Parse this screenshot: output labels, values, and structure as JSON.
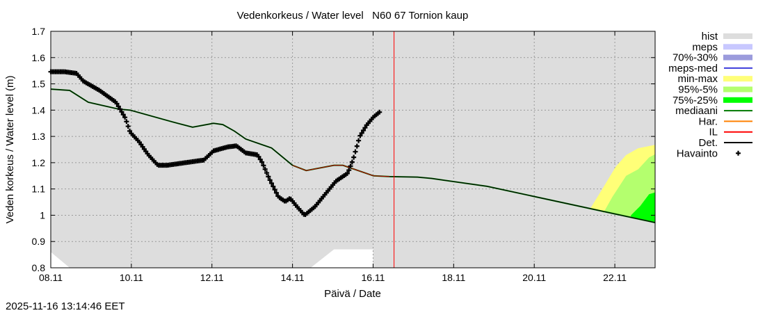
{
  "chart_data": {
    "type": "line",
    "title": "Vedenkorkeus / Water level   N60 67 Tornion kaup",
    "xlabel": "Päivä / Date",
    "ylabel": "Veden korkeus / Water level (m)",
    "x_unit": "days since 08.11",
    "xlim": [
      0,
      15
    ],
    "ylim": [
      0.8,
      1.7
    ],
    "grid": true,
    "legend_position": "right",
    "x_ticks": [
      {
        "x": 0,
        "label": "08.11"
      },
      {
        "x": 2,
        "label": "10.11"
      },
      {
        "x": 4,
        "label": "12.11"
      },
      {
        "x": 6,
        "label": "14.11"
      },
      {
        "x": 8,
        "label": "16.11"
      },
      {
        "x": 10,
        "label": "18.11"
      },
      {
        "x": 12,
        "label": "20.11"
      },
      {
        "x": 14,
        "label": "22.11"
      }
    ],
    "y_ticks": [
      {
        "y": 0.8,
        "label": "0.8"
      },
      {
        "y": 0.9,
        "label": "0.9"
      },
      {
        "y": 1.0,
        "label": "1"
      },
      {
        "y": 1.1,
        "label": "1.1"
      },
      {
        "y": 1.2,
        "label": "1.2"
      },
      {
        "y": 1.3,
        "label": "1.3"
      },
      {
        "y": 1.4,
        "label": "1.4"
      },
      {
        "y": 1.5,
        "label": "1.5"
      },
      {
        "y": 1.6,
        "label": "1.6"
      },
      {
        "y": 1.7,
        "label": "1.7"
      }
    ],
    "forecast_start_x": 8.52,
    "hist_lower": [
      [
        0,
        0.86
      ],
      [
        0.47,
        0.8
      ],
      [
        6.45,
        0.8
      ],
      [
        7.03,
        0.87
      ],
      [
        8.0,
        0.87
      ],
      [
        8.0,
        0.8
      ],
      [
        15,
        0.8
      ]
    ],
    "det": [
      [
        0,
        1.48
      ],
      [
        0.47,
        1.475
      ],
      [
        0.93,
        1.43
      ],
      [
        1.68,
        1.404
      ],
      [
        1.97,
        1.4
      ],
      [
        3.0,
        1.356
      ],
      [
        3.52,
        1.335
      ],
      [
        4.04,
        1.35
      ],
      [
        4.27,
        1.345
      ],
      [
        4.56,
        1.32
      ],
      [
        4.84,
        1.29
      ],
      [
        5.48,
        1.256
      ],
      [
        6.0,
        1.19
      ],
      [
        6.34,
        1.17
      ],
      [
        7.03,
        1.19
      ],
      [
        7.25,
        1.19
      ],
      [
        8.01,
        1.15
      ],
      [
        8.41,
        1.147
      ],
      [
        9.1,
        1.145
      ],
      [
        9.45,
        1.14
      ],
      [
        10.83,
        1.11
      ],
      [
        15,
        0.972
      ]
    ],
    "il_range": [
      6.0,
      8.5
    ],
    "observations": [
      [
        0,
        1.546
      ],
      [
        0.35,
        1.546
      ],
      [
        0.64,
        1.54
      ],
      [
        0.81,
        1.51
      ],
      [
        1.21,
        1.475
      ],
      [
        1.62,
        1.43
      ],
      [
        1.85,
        1.37
      ],
      [
        1.97,
        1.316
      ],
      [
        2.19,
        1.28
      ],
      [
        2.42,
        1.23
      ],
      [
        2.66,
        1.19
      ],
      [
        2.88,
        1.19
      ],
      [
        3.8,
        1.21
      ],
      [
        4.04,
        1.245
      ],
      [
        4.39,
        1.26
      ],
      [
        4.61,
        1.264
      ],
      [
        4.84,
        1.237
      ],
      [
        5.13,
        1.23
      ],
      [
        5.25,
        1.2
      ],
      [
        5.42,
        1.14
      ],
      [
        5.65,
        1.07
      ],
      [
        5.82,
        1.052
      ],
      [
        5.94,
        1.065
      ],
      [
        6.11,
        1.033
      ],
      [
        6.3,
        1.0
      ],
      [
        6.56,
        1.033
      ],
      [
        6.8,
        1.078
      ],
      [
        7.08,
        1.13
      ],
      [
        7.37,
        1.16
      ],
      [
        7.5,
        1.21
      ],
      [
        7.67,
        1.3
      ],
      [
        7.84,
        1.343
      ],
      [
        8.01,
        1.374
      ],
      [
        8.19,
        1.396
      ]
    ],
    "minmax_upper": [
      [
        13.37,
        1.02
      ],
      [
        13.71,
        1.105
      ],
      [
        14.02,
        1.184
      ],
      [
        14.28,
        1.229
      ],
      [
        14.58,
        1.255
      ],
      [
        15,
        1.268
      ]
    ],
    "p95_5_upper": [
      [
        13.71,
        1.007
      ],
      [
        13.94,
        1.07
      ],
      [
        14.28,
        1.15
      ],
      [
        14.58,
        1.175
      ],
      [
        14.85,
        1.22
      ],
      [
        15,
        1.232
      ]
    ],
    "p75_25_upper": [
      [
        14.4,
        1.0
      ],
      [
        14.63,
        1.035
      ],
      [
        14.85,
        1.08
      ],
      [
        15,
        1.087
      ]
    ],
    "legend": [
      {
        "label": "hist",
        "color": "#dddddd",
        "kind": "band"
      },
      {
        "label": "meps",
        "color": "#c8c8ff",
        "kind": "band"
      },
      {
        "label": "70%-30%",
        "color": "#9b9bdc",
        "kind": "band"
      },
      {
        "label": "meps-med",
        "color": "#3c3cdc",
        "kind": "line"
      },
      {
        "label": "min-max",
        "color": "#ffff78",
        "kind": "band"
      },
      {
        "label": "95%-5%",
        "color": "#b4ff6e",
        "kind": "band"
      },
      {
        "label": "75%-25%",
        "color": "#00ff00",
        "kind": "band"
      },
      {
        "label": "mediaani",
        "color": "#007800",
        "kind": "line"
      },
      {
        "label": "Har.",
        "color": "#ff8000",
        "kind": "line"
      },
      {
        "label": "IL",
        "color": "#ff0000",
        "kind": "line"
      },
      {
        "label": "Det.",
        "color": "#000000",
        "kind": "line"
      },
      {
        "label": "Havainto",
        "color": "#000000",
        "kind": "marker"
      }
    ]
  },
  "timestamp": "2025-11-16 13:14:46 EET"
}
